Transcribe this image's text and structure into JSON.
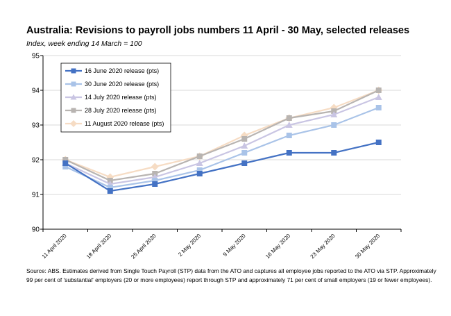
{
  "chart_data": {
    "type": "line",
    "title": "Australia: Revisions to payroll jobs numbers 11 April - 30 May, selected releases",
    "subtitle": "Index, week ending 14 March = 100",
    "xlabel": "",
    "ylabel": "",
    "categories": [
      "11 April 2020",
      "18 April 2020",
      "25 April 2020",
      "2 May 2020",
      "9 May 2020",
      "16 May 2020",
      "23 May 2020",
      "30 May 2020"
    ],
    "ylim": [
      90,
      95
    ],
    "yticks": [
      90,
      91,
      92,
      93,
      94,
      95
    ],
    "grid": "horizontal",
    "legend_position": "top-left",
    "series": [
      {
        "name": "16 June 2020 release (pts)",
        "color": "#4472C4",
        "marker": "square",
        "values": [
          91.9,
          91.1,
          91.3,
          91.6,
          91.9,
          92.2,
          92.2,
          92.5
        ]
      },
      {
        "name": "30 June 2020 release (pts)",
        "color": "#A9C3E8",
        "marker": "square",
        "values": [
          91.8,
          91.2,
          91.4,
          91.7,
          92.2,
          92.7,
          93.0,
          93.5
        ]
      },
      {
        "name": "14 July 2020 release (pts)",
        "color": "#C9C5E3",
        "marker": "triangle",
        "values": [
          91.9,
          91.3,
          91.5,
          91.9,
          92.4,
          93.0,
          93.3,
          93.8
        ]
      },
      {
        "name": "28 July 2020 release (pts)",
        "color": "#B8B4B1",
        "marker": "square",
        "values": [
          92.0,
          91.4,
          91.6,
          92.1,
          92.6,
          93.2,
          93.4,
          94.0
        ]
      },
      {
        "name": "11 August 2020 release (pts)",
        "color": "#F6DCC4",
        "marker": "diamond",
        "values": [
          92.0,
          91.5,
          91.8,
          92.1,
          92.7,
          93.2,
          93.5,
          94.0
        ]
      }
    ]
  },
  "source_note": "Source: ABS.  Estimates derived from Single Touch Payroll (STP) data from the ATO and captures all employee jobs reported to the ATO via STP. Approximately 99 per cent of 'substantial' employers (20 or more employees) report through STP and approximately 71 per cent of small employers (19 or fewer employees)."
}
